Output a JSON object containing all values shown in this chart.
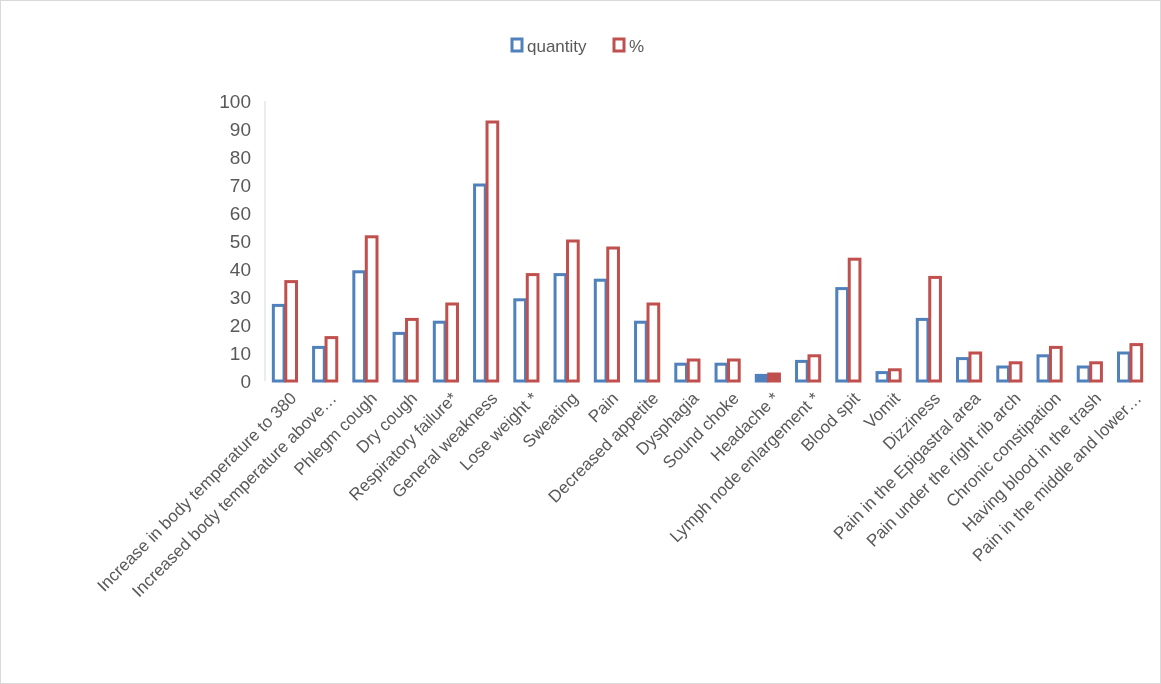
{
  "chart_data": {
    "type": "bar",
    "categories": [
      "Increase in body temperature to 380",
      "Increased body temperature above…",
      "Phlegm cough",
      "Dry cough",
      "Respiratory failure*",
      "General weakness",
      "Lose weight *",
      "Sweating",
      "Pain",
      "Decreased appetite",
      "Dysphagia",
      "Sound choke",
      "Headache *",
      "Lymph node enlargement *",
      "Blood spit",
      "Vomit",
      "Dizziness",
      "Pain in the Epigastral area",
      "Pain under the right rib arch",
      "Chronic constipation",
      "Having blood in the trash",
      "Pain in the middle and lower…"
    ],
    "series": [
      {
        "name": "quantity",
        "color": "#4f81bd",
        "values": [
          27,
          12,
          39,
          17,
          21,
          70,
          29,
          38,
          36,
          21,
          6,
          6,
          2,
          7,
          33,
          3,
          22,
          8,
          5,
          9,
          5,
          10
        ]
      },
      {
        "name": "%",
        "color": "#c0504d",
        "values": [
          35.5,
          15.5,
          51.5,
          22,
          27.5,
          92.5,
          38,
          50,
          47.5,
          27.5,
          7.5,
          7.5,
          2.5,
          9,
          43.5,
          4,
          37,
          10,
          6.5,
          12,
          6.5,
          13
        ]
      }
    ],
    "ylim": [
      0,
      100
    ],
    "yticks": [
      0,
      10,
      20,
      30,
      40,
      50,
      60,
      70,
      80,
      90,
      100
    ],
    "grid": false,
    "legend": "top"
  }
}
